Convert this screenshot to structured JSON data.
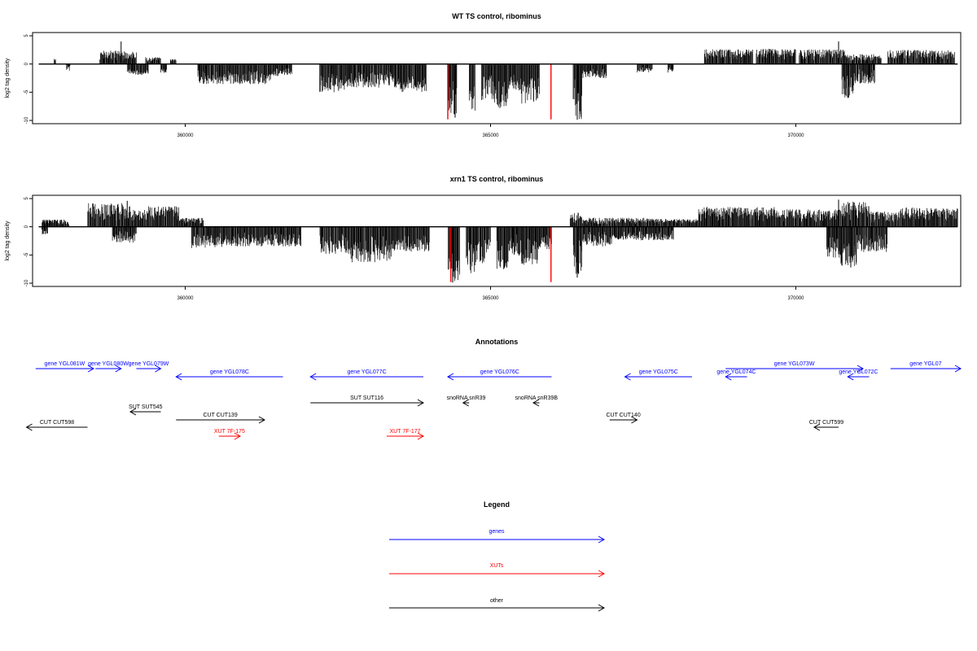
{
  "chart_data": [
    {
      "type": "bar",
      "title": "WT TS control, ribominus",
      "ylabel": "log2 tag density",
      "xlim": [
        357500,
        372700
      ],
      "ylim": [
        -10,
        5
      ],
      "xticks": [
        360000,
        365000,
        370000
      ],
      "yticks": [
        -10,
        -5,
        0,
        5
      ],
      "highlight_color": "#ff0000",
      "highlight_x": [
        364300,
        365990
      ],
      "highlight_values": [
        -9.8,
        -9.8
      ],
      "baseline_extent": [
        357600,
        372650
      ],
      "watson_clusters": [
        [
          357850,
          357880,
          0.9
        ],
        [
          358600,
          358950,
          2.4
        ],
        [
          358950,
          359200,
          2.3
        ],
        [
          359350,
          359600,
          1.2
        ],
        [
          359750,
          359850,
          0.9
        ],
        [
          368500,
          369300,
          2.6
        ],
        [
          369350,
          370000,
          2.7
        ],
        [
          370050,
          370800,
          2.6
        ],
        [
          370800,
          371400,
          1.8
        ],
        [
          371500,
          372600,
          2.5
        ]
      ],
      "crick_clusters": [
        [
          358050,
          358120,
          -1.2
        ],
        [
          359050,
          359400,
          -1.9
        ],
        [
          359600,
          359700,
          -1.6
        ],
        [
          360200,
          361400,
          -3.6
        ],
        [
          361400,
          361750,
          -2.2
        ],
        [
          362200,
          362650,
          -5.0
        ],
        [
          362650,
          363500,
          -4.2
        ],
        [
          363500,
          363950,
          -5.0
        ],
        [
          364300,
          364450,
          -9.0
        ],
        [
          364650,
          364750,
          -8.5
        ],
        [
          364850,
          365050,
          -6.5
        ],
        [
          365050,
          365300,
          -8.0
        ],
        [
          365300,
          365500,
          -5.0
        ],
        [
          365500,
          365800,
          -7.0
        ],
        [
          366350,
          366500,
          -9.8
        ],
        [
          366500,
          366900,
          -2.5
        ],
        [
          367400,
          367650,
          -1.5
        ],
        [
          367900,
          368000,
          -1.5
        ],
        [
          370750,
          370950,
          -6.0
        ],
        [
          370950,
          371300,
          -3.5
        ]
      ],
      "spikes": [
        [
          358950,
          4.0
        ],
        [
          370700,
          4.0
        ],
        [
          370850,
          -6.0
        ],
        [
          364420,
          -9.5
        ],
        [
          366420,
          -9.9
        ]
      ]
    },
    {
      "type": "bar",
      "title": "xrn1 TS control, ribominus",
      "ylabel": "log2 tag density",
      "xlim": [
        357500,
        372700
      ],
      "ylim": [
        -10,
        5
      ],
      "xticks": [
        360000,
        365000,
        370000
      ],
      "yticks": [
        -10,
        -5,
        0,
        5
      ],
      "highlight_color": "#ff0000",
      "highlight_x": [
        364350,
        365990
      ],
      "highlight_values": [
        -9.8,
        -9.8
      ],
      "baseline_extent": [
        357600,
        372650
      ],
      "watson_clusters": [
        [
          357650,
          358100,
          1.3
        ],
        [
          358400,
          359100,
          4.2
        ],
        [
          359100,
          359400,
          3.0
        ],
        [
          359400,
          359900,
          3.7
        ],
        [
          359900,
          360300,
          1.6
        ],
        [
          366300,
          366500,
          2.5
        ],
        [
          366500,
          367700,
          1.6
        ],
        [
          367700,
          368400,
          1.4
        ],
        [
          368400,
          369800,
          3.5
        ],
        [
          369800,
          370700,
          3.1
        ],
        [
          370700,
          371200,
          4.5
        ],
        [
          371200,
          371700,
          2.7
        ],
        [
          371700,
          372650,
          3.4
        ]
      ],
      "crick_clusters": [
        [
          357650,
          357750,
          -1.5
        ],
        [
          358800,
          359200,
          -2.8
        ],
        [
          360100,
          360600,
          -3.8
        ],
        [
          360600,
          361900,
          -3.5
        ],
        [
          362200,
          362700,
          -4.8
        ],
        [
          362700,
          363400,
          -6.3
        ],
        [
          363400,
          364000,
          -4.5
        ],
        [
          364300,
          364500,
          -9.8
        ],
        [
          364600,
          364750,
          -8.5
        ],
        [
          364750,
          365000,
          -6.5
        ],
        [
          365100,
          365300,
          -7.8
        ],
        [
          365300,
          365500,
          -5.2
        ],
        [
          365500,
          365800,
          -6.8
        ],
        [
          365800,
          366000,
          -4.0
        ],
        [
          366350,
          366500,
          -8.8
        ],
        [
          366500,
          367000,
          -3.5
        ],
        [
          367000,
          368000,
          -2.4
        ],
        [
          370500,
          370700,
          -5.5
        ],
        [
          370700,
          371000,
          -7.2
        ],
        [
          371000,
          371500,
          -4.5
        ]
      ],
      "spikes": [
        [
          359050,
          4.6
        ],
        [
          370700,
          4.8
        ],
        [
          370900,
          -7.2
        ],
        [
          364380,
          -9.9
        ],
        [
          366420,
          -9.0
        ]
      ]
    }
  ],
  "annotations": {
    "title": "Annotations",
    "xlim": [
      357500,
      372700
    ],
    "colors": {
      "genes": "#0000ff",
      "XUTs": "#ff0000",
      "other": "#000000"
    },
    "features": [
      {
        "label": "gene YGL081W",
        "start": 357550,
        "end": 358500,
        "strand": "+",
        "type": "genes",
        "row": 0
      },
      {
        "label": "gene YGL080W",
        "start": 358530,
        "end": 358950,
        "strand": "+",
        "type": "genes",
        "row": 0
      },
      {
        "label": "gene YGL079W",
        "start": 359200,
        "end": 359600,
        "strand": "+",
        "type": "genes",
        "row": 0
      },
      {
        "label": "gene YGL078C",
        "start": 359850,
        "end": 361600,
        "strand": "-",
        "type": "genes",
        "row": 1
      },
      {
        "label": "gene YGL077C",
        "start": 362050,
        "end": 363900,
        "strand": "-",
        "type": "genes",
        "row": 1
      },
      {
        "label": "gene YGL076C",
        "start": 364300,
        "end": 366000,
        "strand": "-",
        "type": "genes",
        "row": 1
      },
      {
        "label": "gene YGL075C",
        "start": 367200,
        "end": 368300,
        "strand": "-",
        "type": "genes",
        "row": 1
      },
      {
        "label": "gene YGL074C",
        "start": 368850,
        "end": 369200,
        "strand": "-",
        "type": "genes",
        "row": 1
      },
      {
        "label": "gene YGL073W",
        "start": 368850,
        "end": 371100,
        "strand": "+",
        "type": "genes",
        "row": 0
      },
      {
        "label": "gene YGL072C",
        "start": 370850,
        "end": 371200,
        "strand": "-",
        "type": "genes",
        "row": 1
      },
      {
        "label": "gene YGL07",
        "start": 371550,
        "end": 372700,
        "strand": "+",
        "type": "genes",
        "row": 0
      },
      {
        "label": "SUT SUT545",
        "start": 359100,
        "end": 359600,
        "strand": "-",
        "type": "other",
        "row": 3
      },
      {
        "label": "SUT SUT116",
        "start": 362050,
        "end": 363900,
        "strand": "+",
        "type": "other",
        "row": 2
      },
      {
        "label": "snoRNA snR39",
        "start": 364550,
        "end": 364650,
        "strand": "-",
        "type": "other",
        "row": 2
      },
      {
        "label": "snoRNA snR39B",
        "start": 365700,
        "end": 365800,
        "strand": "-",
        "type": "other",
        "row": 2
      },
      {
        "label": "CUT CUT139",
        "start": 359850,
        "end": 361300,
        "strand": "+",
        "type": "other",
        "row": 4
      },
      {
        "label": "CUT CUT598",
        "start": 357400,
        "end": 358400,
        "strand": "-",
        "type": "other",
        "row": 5
      },
      {
        "label": "CUT CUT140",
        "start": 366950,
        "end": 367400,
        "strand": "+",
        "type": "other",
        "row": 4
      },
      {
        "label": "CUT CUT599",
        "start": 370300,
        "end": 370700,
        "strand": "-",
        "type": "other",
        "row": 5
      },
      {
        "label": "XUT 7F-175",
        "start": 360550,
        "end": 360900,
        "strand": "+",
        "type": "XUTs",
        "row": 6
      },
      {
        "label": "XUT 7F-177",
        "start": 363300,
        "end": 363900,
        "strand": "+",
        "type": "XUTs",
        "row": 6
      }
    ]
  },
  "legend": {
    "title": "Legend",
    "items": [
      {
        "label": "genes",
        "color": "#0000ff"
      },
      {
        "label": "XUTs",
        "color": "#ff0000"
      },
      {
        "label": "other",
        "color": "#000000"
      }
    ]
  }
}
